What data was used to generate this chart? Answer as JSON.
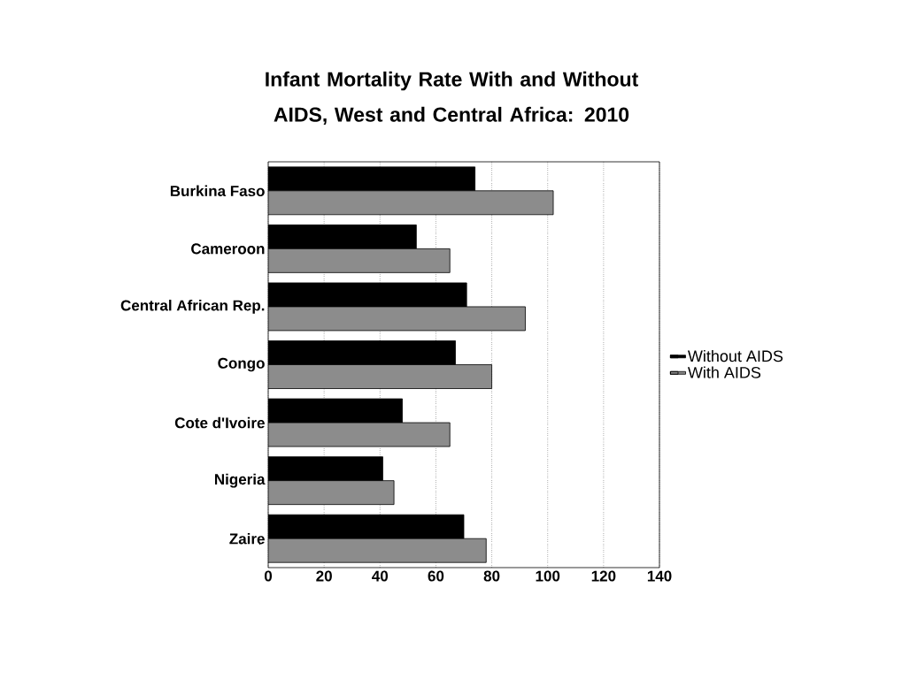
{
  "chart_data": {
    "type": "bar",
    "orientation": "horizontal",
    "title": "Infant Mortality Rate With and Without AIDS, West and Central  Africa:  2010",
    "categories": [
      "Burkina Faso",
      "Cameroon",
      "Central African Rep.",
      "Congo",
      "Cote d'Ivoire",
      "Nigeria",
      "Zaire"
    ],
    "series": [
      {
        "name": "Without AIDS",
        "color": "#000000",
        "values": [
          74,
          53,
          71,
          67,
          48,
          41,
          70
        ]
      },
      {
        "name": "With AIDS",
        "color": "#8c8c8c",
        "values": [
          102,
          65,
          92,
          80,
          65,
          45,
          78
        ]
      }
    ],
    "xlim": [
      0,
      140
    ],
    "xticks": [
      0,
      20,
      40,
      60,
      80,
      100,
      120,
      140
    ],
    "grid": "x",
    "legend": "right"
  }
}
